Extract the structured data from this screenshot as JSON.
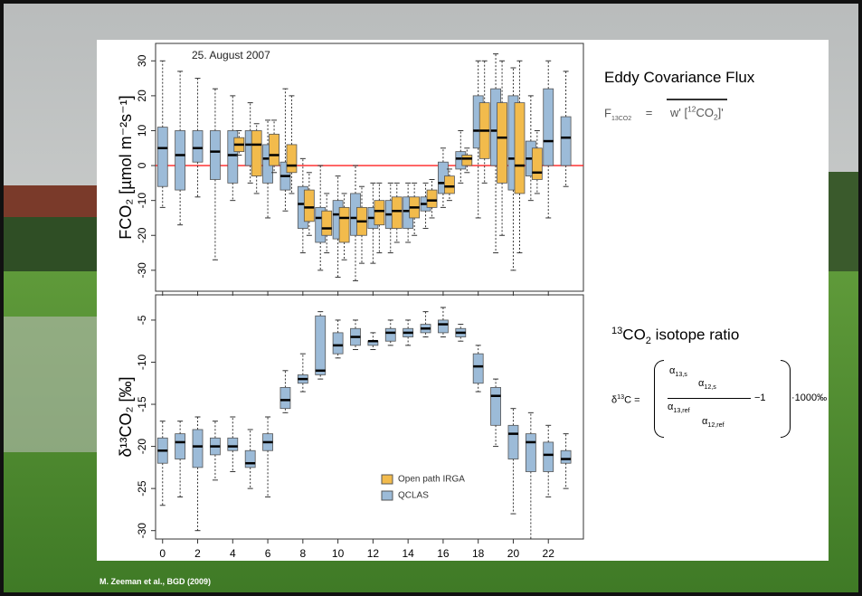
{
  "chart_data": [
    {
      "type": "box",
      "annotation": "25. August 2007",
      "y_label": "FCO₂ [µmol m⁻²s⁻¹]",
      "x": [
        0,
        1,
        2,
        3,
        4,
        5,
        6,
        7,
        8,
        9,
        10,
        11,
        12,
        13,
        14,
        15,
        16,
        17,
        18,
        19,
        20,
        21,
        22,
        23
      ],
      "xlim": [
        -0.4,
        24
      ],
      "xticks": [
        0,
        2,
        4,
        6,
        8,
        10,
        12,
        14,
        16,
        18,
        20,
        22
      ],
      "ylim": [
        -36,
        35
      ],
      "yticks": [
        -30,
        -20,
        -10,
        0,
        10,
        20,
        30
      ],
      "reference_line": {
        "value": 0,
        "color": "#ff2020"
      },
      "series": [
        {
          "name": "QCLAS",
          "color": "#9cbbd8",
          "low": [
            -12,
            -17,
            -9,
            -27,
            -10,
            -5,
            -15,
            -13,
            -25,
            -30,
            -32,
            -33,
            -28,
            -25,
            -22,
            -18,
            -12,
            -5,
            -15,
            -25,
            -30,
            -10,
            -15,
            -6
          ],
          "q1": [
            -6,
            -7,
            1,
            -4,
            -5,
            0,
            -5,
            -7,
            -18,
            -22,
            -21,
            -20,
            -18,
            -18,
            -18,
            -13,
            -8,
            -1,
            5,
            0,
            -7,
            -3,
            0,
            0
          ],
          "median": [
            5,
            3,
            5,
            4,
            3,
            6,
            2,
            -3,
            -11,
            -15,
            -14,
            -15,
            -15,
            -14,
            -13,
            -11,
            -5,
            2,
            10,
            10,
            2,
            2,
            7,
            8
          ],
          "q3": [
            11,
            10,
            10,
            10,
            10,
            10,
            6,
            1,
            -6,
            -12,
            -10,
            -8,
            -12,
            -10,
            -9,
            -9,
            1,
            4,
            20,
            22,
            20,
            7,
            22,
            14
          ],
          "high": [
            30,
            27,
            25,
            22,
            20,
            18,
            13,
            22,
            2,
            0,
            -3,
            0,
            -5,
            -5,
            -5,
            -5,
            5,
            10,
            30,
            32,
            28,
            20,
            30,
            27
          ]
        },
        {
          "name": "Open path IRGA",
          "color": "#f2bb4c",
          "low": [
            null,
            null,
            null,
            null,
            3,
            -8,
            -2,
            -8,
            -20,
            -25,
            -27,
            -28,
            -25,
            -22,
            -20,
            -15,
            -10,
            -2,
            -5,
            -20,
            -25,
            -8,
            null,
            null
          ],
          "q1": [
            null,
            null,
            null,
            null,
            4,
            -3,
            0,
            -2,
            -16,
            -20,
            -22,
            -20,
            -17,
            -18,
            -15,
            -12,
            -8,
            0,
            2,
            -5,
            -8,
            -4,
            null,
            null
          ],
          "median": [
            null,
            null,
            null,
            null,
            6,
            6,
            3,
            0,
            -12,
            -18,
            -15,
            -16,
            -13,
            -13,
            -12,
            -10,
            -6,
            2,
            10,
            8,
            0,
            -2,
            null,
            null
          ],
          "q3": [
            null,
            null,
            null,
            null,
            8,
            10,
            9,
            6,
            -7,
            -13,
            -12,
            -12,
            -10,
            -9,
            -9,
            -7,
            -3,
            3,
            18,
            18,
            18,
            5,
            null,
            null
          ],
          "high": [
            null,
            null,
            null,
            null,
            10,
            12,
            13,
            20,
            -2,
            -8,
            -8,
            -6,
            -5,
            -5,
            -5,
            -4,
            -1,
            5,
            30,
            30,
            30,
            10,
            null,
            null
          ]
        }
      ]
    },
    {
      "type": "box",
      "y_label": "δ¹³CO₂ [‰]",
      "x": [
        0,
        1,
        2,
        3,
        4,
        5,
        6,
        7,
        8,
        9,
        10,
        11,
        12,
        13,
        14,
        15,
        16,
        17,
        18,
        19,
        20,
        21,
        22,
        23
      ],
      "xlim": [
        -0.4,
        24
      ],
      "xticks": [
        0,
        2,
        4,
        6,
        8,
        10,
        12,
        14,
        16,
        18,
        20,
        22
      ],
      "ylim": [
        -31,
        -2
      ],
      "yticks": [
        -30,
        -25,
        -20,
        -15,
        -10,
        -5
      ],
      "series": [
        {
          "color": "#9cbbd8",
          "low": [
            -27,
            -26,
            -30,
            -24,
            -23,
            -25,
            -26,
            -16,
            -13.5,
            -12,
            -9.5,
            -8.5,
            -8.5,
            -8,
            -8,
            -7,
            -7,
            -7.5,
            -13.5,
            -20,
            -28,
            -31,
            -26,
            -25
          ],
          "q1": [
            -22,
            -21.5,
            -22.5,
            -21,
            -20.5,
            -22.5,
            -20.5,
            -15.5,
            -12.5,
            -11.5,
            -9,
            -8,
            -8,
            -7.5,
            -7,
            -6.5,
            -6.5,
            -7,
            -12.5,
            -17.5,
            -21.5,
            -23,
            -23,
            -22
          ],
          "median": [
            -20.5,
            -19.5,
            -20,
            -20,
            -20,
            -22,
            -19.5,
            -14.5,
            -12,
            -11,
            -8,
            -7,
            -7.5,
            -6.5,
            -6.5,
            -6,
            -5.5,
            -6.5,
            -10.5,
            -14,
            -18.5,
            -19.5,
            -21,
            -21.5
          ],
          "q3": [
            -19,
            -18.5,
            -18,
            -19,
            -19,
            -20.5,
            -18.5,
            -13,
            -11.5,
            -4.5,
            -6.5,
            -6,
            -7.5,
            -6,
            -6,
            -5.5,
            -5,
            -6,
            -9,
            -13,
            -17.5,
            -18.5,
            -19.5,
            -20.5
          ],
          "high": [
            -17,
            -17,
            -16.5,
            -17,
            -16.5,
            -18,
            -16.5,
            -11,
            -9,
            -4,
            -5,
            -5,
            -6.5,
            -5,
            -5,
            -4,
            -3.5,
            -5.5,
            -8,
            -12,
            -15.5,
            -16,
            -17.5,
            -18.5
          ]
        }
      ]
    }
  ],
  "slide": {
    "eddy_title": "Eddy Covariance Flux",
    "eddy_formula": {
      "lhs": "F",
      "lhs_sub": "13CO2",
      "equals": "=",
      "rhs_pre": "w' [",
      "rhs_sup": "12",
      "rhs_mid": "CO",
      "rhs_sub": "2",
      "rhs_post": "]'"
    },
    "isotope_title": {
      "sup": "13",
      "mid": "CO",
      "sub": "2",
      "rest": " isotope ratio"
    },
    "delta_formula": {
      "symbol": "δ",
      "sup": "13",
      "rest": "C =",
      "alpha": "α",
      "a13s": "13,s",
      "a12s": "12,s",
      "a13r": "13,ref",
      "a12r": "12,ref",
      "minus_one": "−1",
      "factor": "·1000‰"
    },
    "citation": "M. Zeeman et al., BGD (2009)"
  }
}
